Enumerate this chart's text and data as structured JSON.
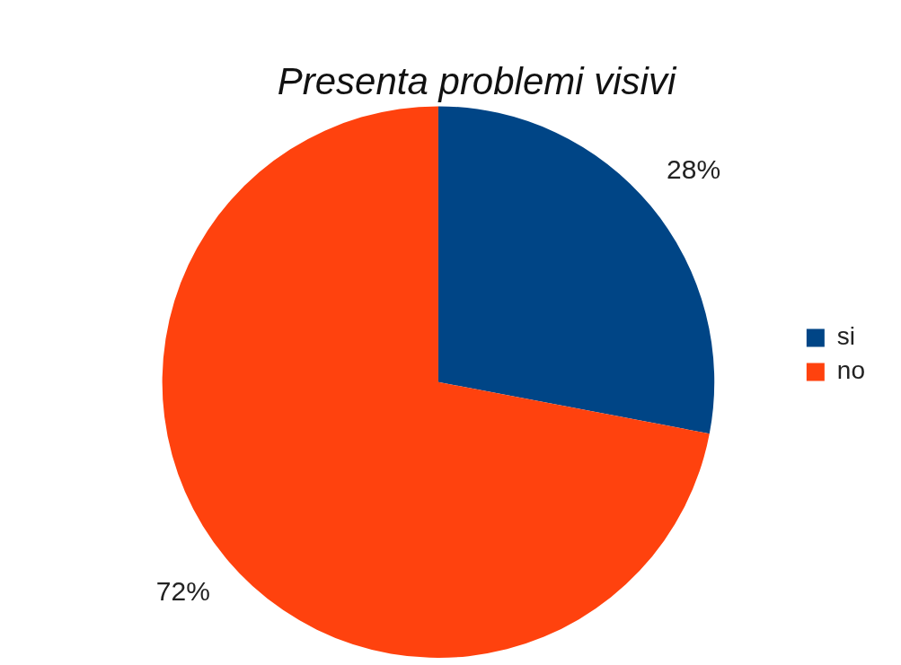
{
  "chart_data": {
    "type": "pie",
    "title": "Presenta problemi visivi",
    "categories": [
      "si",
      "no"
    ],
    "values": [
      28,
      72
    ],
    "colors": [
      "#004586",
      "#ff420e"
    ],
    "value_labels": [
      "28%",
      "72%"
    ],
    "legend": "right"
  }
}
